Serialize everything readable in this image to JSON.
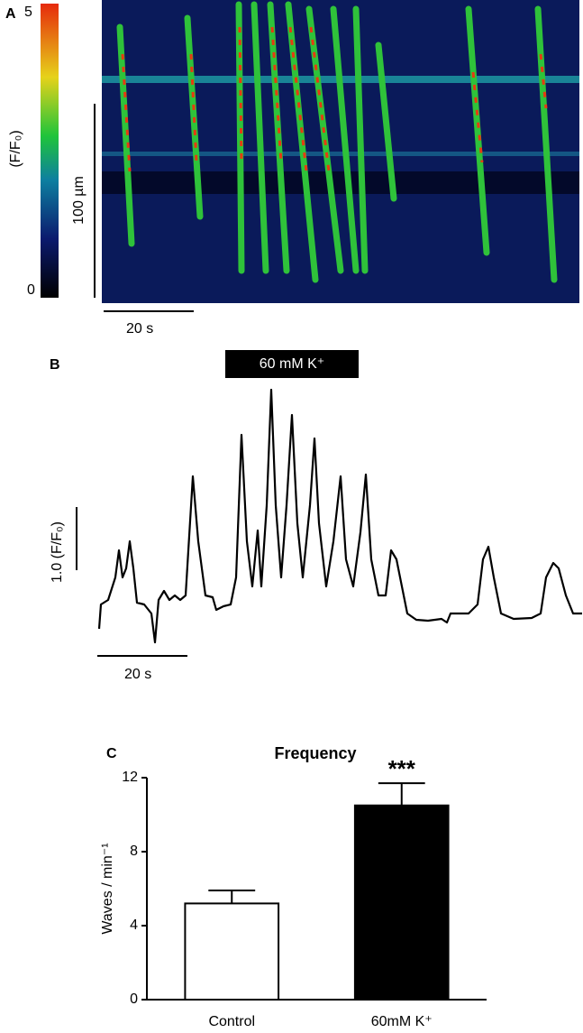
{
  "panels": {
    "a": {
      "label": "A",
      "colorbar_max": "5",
      "colorbar_min": "0",
      "colorbar_unit": "(F/F₀)",
      "space_scale": "100 µm",
      "time_scale": "20 s"
    },
    "b": {
      "label": "B",
      "stimulus": "60 mM K⁺",
      "amplitude_scale": "1.0  (F/F₀)",
      "time_scale": "20 s"
    }
  },
  "chart_data": {
    "type": "bar",
    "panel_label": "C",
    "title": "Frequency",
    "y_label": "Waves / min⁻¹",
    "categories": [
      "Control",
      "60mM K⁺"
    ],
    "values": [
      5.2,
      10.5
    ],
    "errors": [
      0.7,
      1.2
    ],
    "colors": [
      "#ffffff",
      "#000000"
    ],
    "annotations": [
      null,
      "***"
    ],
    "ylim": [
      0,
      12
    ],
    "yticks": [
      0,
      4,
      8,
      12
    ]
  }
}
